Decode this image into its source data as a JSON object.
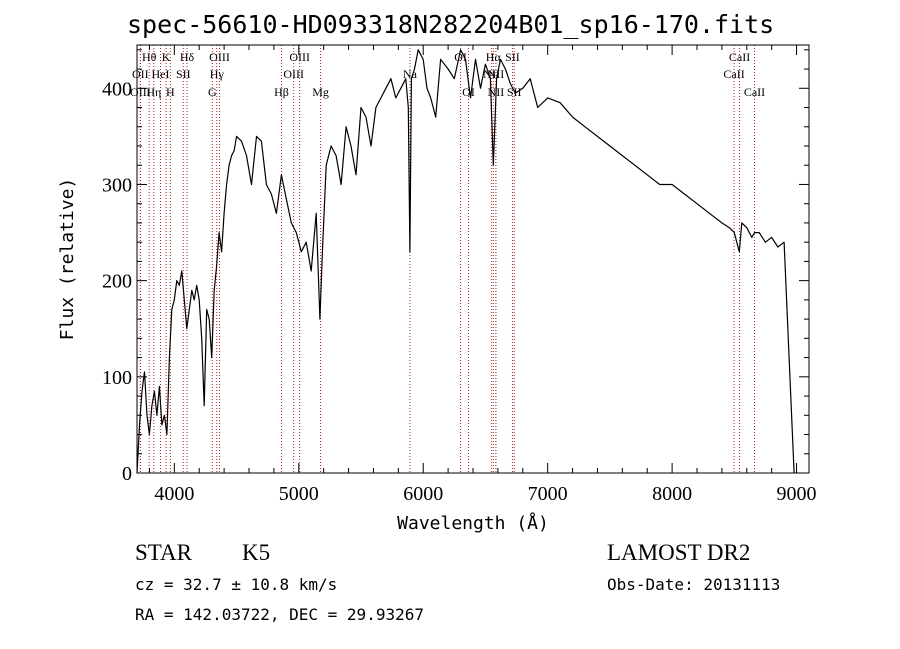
{
  "chart_data": {
    "type": "line",
    "title": "spec-56610-HD093318N282204B01_sp16-170.fits",
    "xlabel": "Wavelength (Å)",
    "ylabel": "Flux (relative)",
    "xlim": [
      3700,
      9100
    ],
    "ylim": [
      0,
      445
    ],
    "xticks": [
      4000,
      5000,
      6000,
      7000,
      8000,
      9000
    ],
    "yticks": [
      0,
      100,
      200,
      300,
      400
    ],
    "grid": false,
    "line_color": "#000000",
    "marker_color": "#b22222",
    "series": [
      {
        "x": [
          3700,
          3720,
          3740,
          3760,
          3780,
          3800,
          3820,
          3840,
          3860,
          3880,
          3900,
          3920,
          3940,
          3960,
          3980,
          4000,
          4020,
          4040,
          4060,
          4080,
          4100,
          4120,
          4140,
          4160,
          4180,
          4200,
          4220,
          4240,
          4260,
          4280,
          4300,
          4320,
          4340,
          4360,
          4380,
          4400,
          4420,
          4440,
          4460,
          4480,
          4500,
          4540,
          4580,
          4620,
          4660,
          4700,
          4740,
          4780,
          4820,
          4860,
          4900,
          4940,
          4980,
          5020,
          5060,
          5100,
          5140,
          5170,
          5190,
          5220,
          5260,
          5300,
          5340,
          5380,
          5420,
          5460,
          5500,
          5540,
          5580,
          5620,
          5660,
          5700,
          5740,
          5780,
          5820,
          5860,
          5880,
          5893,
          5905,
          5930,
          5960,
          6000,
          6030,
          6060,
          6100,
          6140,
          6200,
          6250,
          6300,
          6340,
          6380,
          6420,
          6460,
          6500,
          6540,
          6563,
          6590,
          6620,
          6660,
          6700,
          6740,
          6800,
          6860,
          6920,
          7000,
          7100,
          7200,
          7300,
          7400,
          7500,
          7600,
          7700,
          7800,
          7900,
          8000,
          8100,
          8200,
          8300,
          8400,
          8460,
          8500,
          8540,
          8560,
          8600,
          8640,
          8662,
          8700,
          8750,
          8800,
          8850,
          8900,
          8980
        ],
        "y": [
          0,
          50,
          85,
          105,
          60,
          40,
          70,
          85,
          60,
          90,
          50,
          60,
          40,
          120,
          170,
          180,
          200,
          195,
          210,
          180,
          150,
          170,
          190,
          180,
          195,
          180,
          140,
          70,
          170,
          160,
          120,
          190,
          215,
          250,
          230,
          270,
          300,
          320,
          330,
          335,
          350,
          345,
          330,
          300,
          350,
          345,
          300,
          290,
          270,
          310,
          285,
          260,
          250,
          230,
          240,
          210,
          270,
          160,
          230,
          320,
          340,
          330,
          300,
          360,
          340,
          310,
          380,
          370,
          340,
          380,
          390,
          400,
          410,
          390,
          400,
          410,
          380,
          230,
          410,
          420,
          440,
          430,
          400,
          390,
          370,
          430,
          420,
          410,
          440,
          430,
          390,
          430,
          400,
          425,
          410,
          320,
          410,
          430,
          420,
          405,
          395,
          400,
          410,
          380,
          390,
          385,
          370,
          360,
          350,
          340,
          330,
          320,
          310,
          300,
          300,
          290,
          280,
          270,
          260,
          255,
          250,
          230,
          260,
          255,
          245,
          250,
          250,
          240,
          245,
          235,
          240,
          0
        ]
      }
    ],
    "line_markers": [
      {
        "label": "Hθ",
        "x": 3798,
        "row": 0
      },
      {
        "label": "K",
        "x": 3934,
        "row": 0
      },
      {
        "label": "Hδ",
        "x": 4102,
        "row": 0
      },
      {
        "label": "OIII",
        "x": 4363,
        "row": 0
      },
      {
        "label": "OIII",
        "x": 5007,
        "row": 0
      },
      {
        "label": "OI",
        "x": 6300,
        "row": 0
      },
      {
        "label": "Hα",
        "x": 6563,
        "row": 0
      },
      {
        "label": "SII",
        "x": 6717,
        "row": 0
      },
      {
        "label": "CaII",
        "x": 8542,
        "row": 0
      },
      {
        "label": "OII",
        "x": 3727,
        "row": 1
      },
      {
        "label": "HeI",
        "x": 3889,
        "row": 1
      },
      {
        "label": "SII",
        "x": 4072,
        "row": 1
      },
      {
        "label": "Hγ",
        "x": 4341,
        "row": 1
      },
      {
        "label": "OIII",
        "x": 4959,
        "row": 1
      },
      {
        "label": "Na",
        "x": 5893,
        "row": 1
      },
      {
        "label": "NII",
        "x": 6548,
        "row": 1
      },
      {
        "label": "NII",
        "x": 6584,
        "row": 1
      },
      {
        "label": "CaII",
        "x": 8498,
        "row": 1
      },
      {
        "label": "OIII",
        "x": 3727,
        "row": 2
      },
      {
        "label": "Hη",
        "x": 3835,
        "row": 2
      },
      {
        "label": "H",
        "x": 3968,
        "row": 2
      },
      {
        "label": "G",
        "x": 4305,
        "row": 2
      },
      {
        "label": "Hβ",
        "x": 4861,
        "row": 2
      },
      {
        "label": "Mg",
        "x": 5175,
        "row": 2
      },
      {
        "label": "OI",
        "x": 6364,
        "row": 2
      },
      {
        "label": "NII",
        "x": 6584,
        "row": 2
      },
      {
        "label": "SII",
        "x": 6731,
        "row": 2
      },
      {
        "label": "CaII",
        "x": 8662,
        "row": 2
      }
    ]
  },
  "info": {
    "object_type": "STAR",
    "subclass": "K5",
    "survey": "LAMOST DR2",
    "redshift": "cz = 32.7 ± 10.8 km/s",
    "obs_date": "Obs-Date: 20131113",
    "coords": "RA = 142.03722, DEC =  29.93267"
  }
}
